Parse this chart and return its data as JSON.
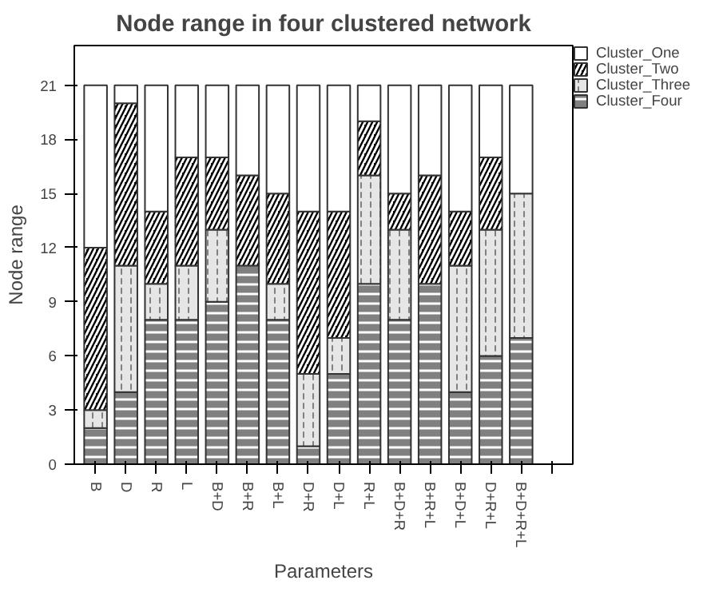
{
  "chart_data": {
    "type": "bar",
    "stacked": true,
    "title": "Node range in four clustered network",
    "xlabel": "Parameters",
    "ylabel": "Node range",
    "categories": [
      "B",
      "D",
      "R",
      "L",
      "B+D",
      "B+R",
      "B+L",
      "D+R",
      "D+L",
      "R+L",
      "B+D+R",
      "B+R+L",
      "B+D+L",
      "D+R+L",
      "B+D+R+L",
      null
    ],
    "series": [
      {
        "name": "Cluster_Four",
        "color": "#808080",
        "values": [
          2,
          4,
          8,
          8,
          9,
          11,
          8,
          1,
          5,
          10,
          8,
          10,
          4,
          6,
          7,
          null
        ]
      },
      {
        "name": "Cluster_Three",
        "color": "#e6e6e6",
        "values": [
          1,
          7,
          2,
          3,
          4,
          null,
          2,
          4,
          2,
          6,
          5,
          null,
          7,
          7,
          8,
          null
        ]
      },
      {
        "name": "Cluster_Two",
        "color": "#000000",
        "values": [
          9,
          9,
          4,
          6,
          4,
          5,
          5,
          9,
          7,
          3,
          2,
          6,
          3,
          4,
          null,
          null
        ]
      },
      {
        "name": "Cluster_One",
        "color": "#ffffff",
        "values": [
          9,
          1,
          7,
          4,
          4,
          5,
          6,
          7,
          7,
          2,
          6,
          5,
          7,
          4,
          6,
          null
        ]
      }
    ],
    "ylim": [
      0,
      23.2
    ],
    "yticks": [
      0,
      3,
      6,
      9,
      12,
      15,
      18,
      21
    ],
    "grid": false,
    "legend": "top right"
  }
}
